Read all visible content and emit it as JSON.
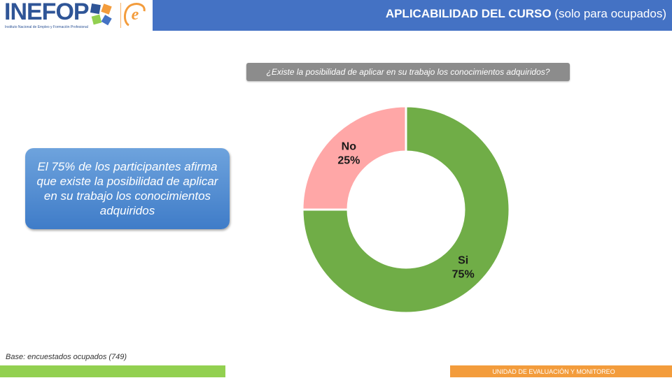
{
  "header": {
    "logo_text": "INEFOP",
    "logo_subtitle": "Instituto Nacional de Empleo y Formación Profesional",
    "title_bold": "APLICABILIDAD DEL CURSO",
    "title_rest": " (solo para ocupados)",
    "bar_color": "#4472c4"
  },
  "question": "¿Existe la posibilidad de aplicar en su trabajo los conocimientos adquiridos?",
  "callout": "El 75% de los participantes afirma que existe la posibilidad de aplicar en su trabajo los conocimientos adquiridos",
  "chart_data": {
    "type": "pie",
    "variant": "donut",
    "title": "",
    "slices": [
      {
        "label": "No",
        "value": 25,
        "value_label": "25%",
        "color": "#ffa7a7"
      },
      {
        "label": "Si",
        "value": 75,
        "value_label": "75%",
        "color": "#70ad47"
      }
    ],
    "start_angle_deg": 0,
    "direction": "counterclockwise",
    "legend": "none"
  },
  "base_note": "Base: encuestados ocupados (749)",
  "footer": {
    "label": "UNIDAD DE EVALUACIÓN Y MONITOREO",
    "left_color": "#92d050",
    "right_color": "#f39c3c"
  }
}
